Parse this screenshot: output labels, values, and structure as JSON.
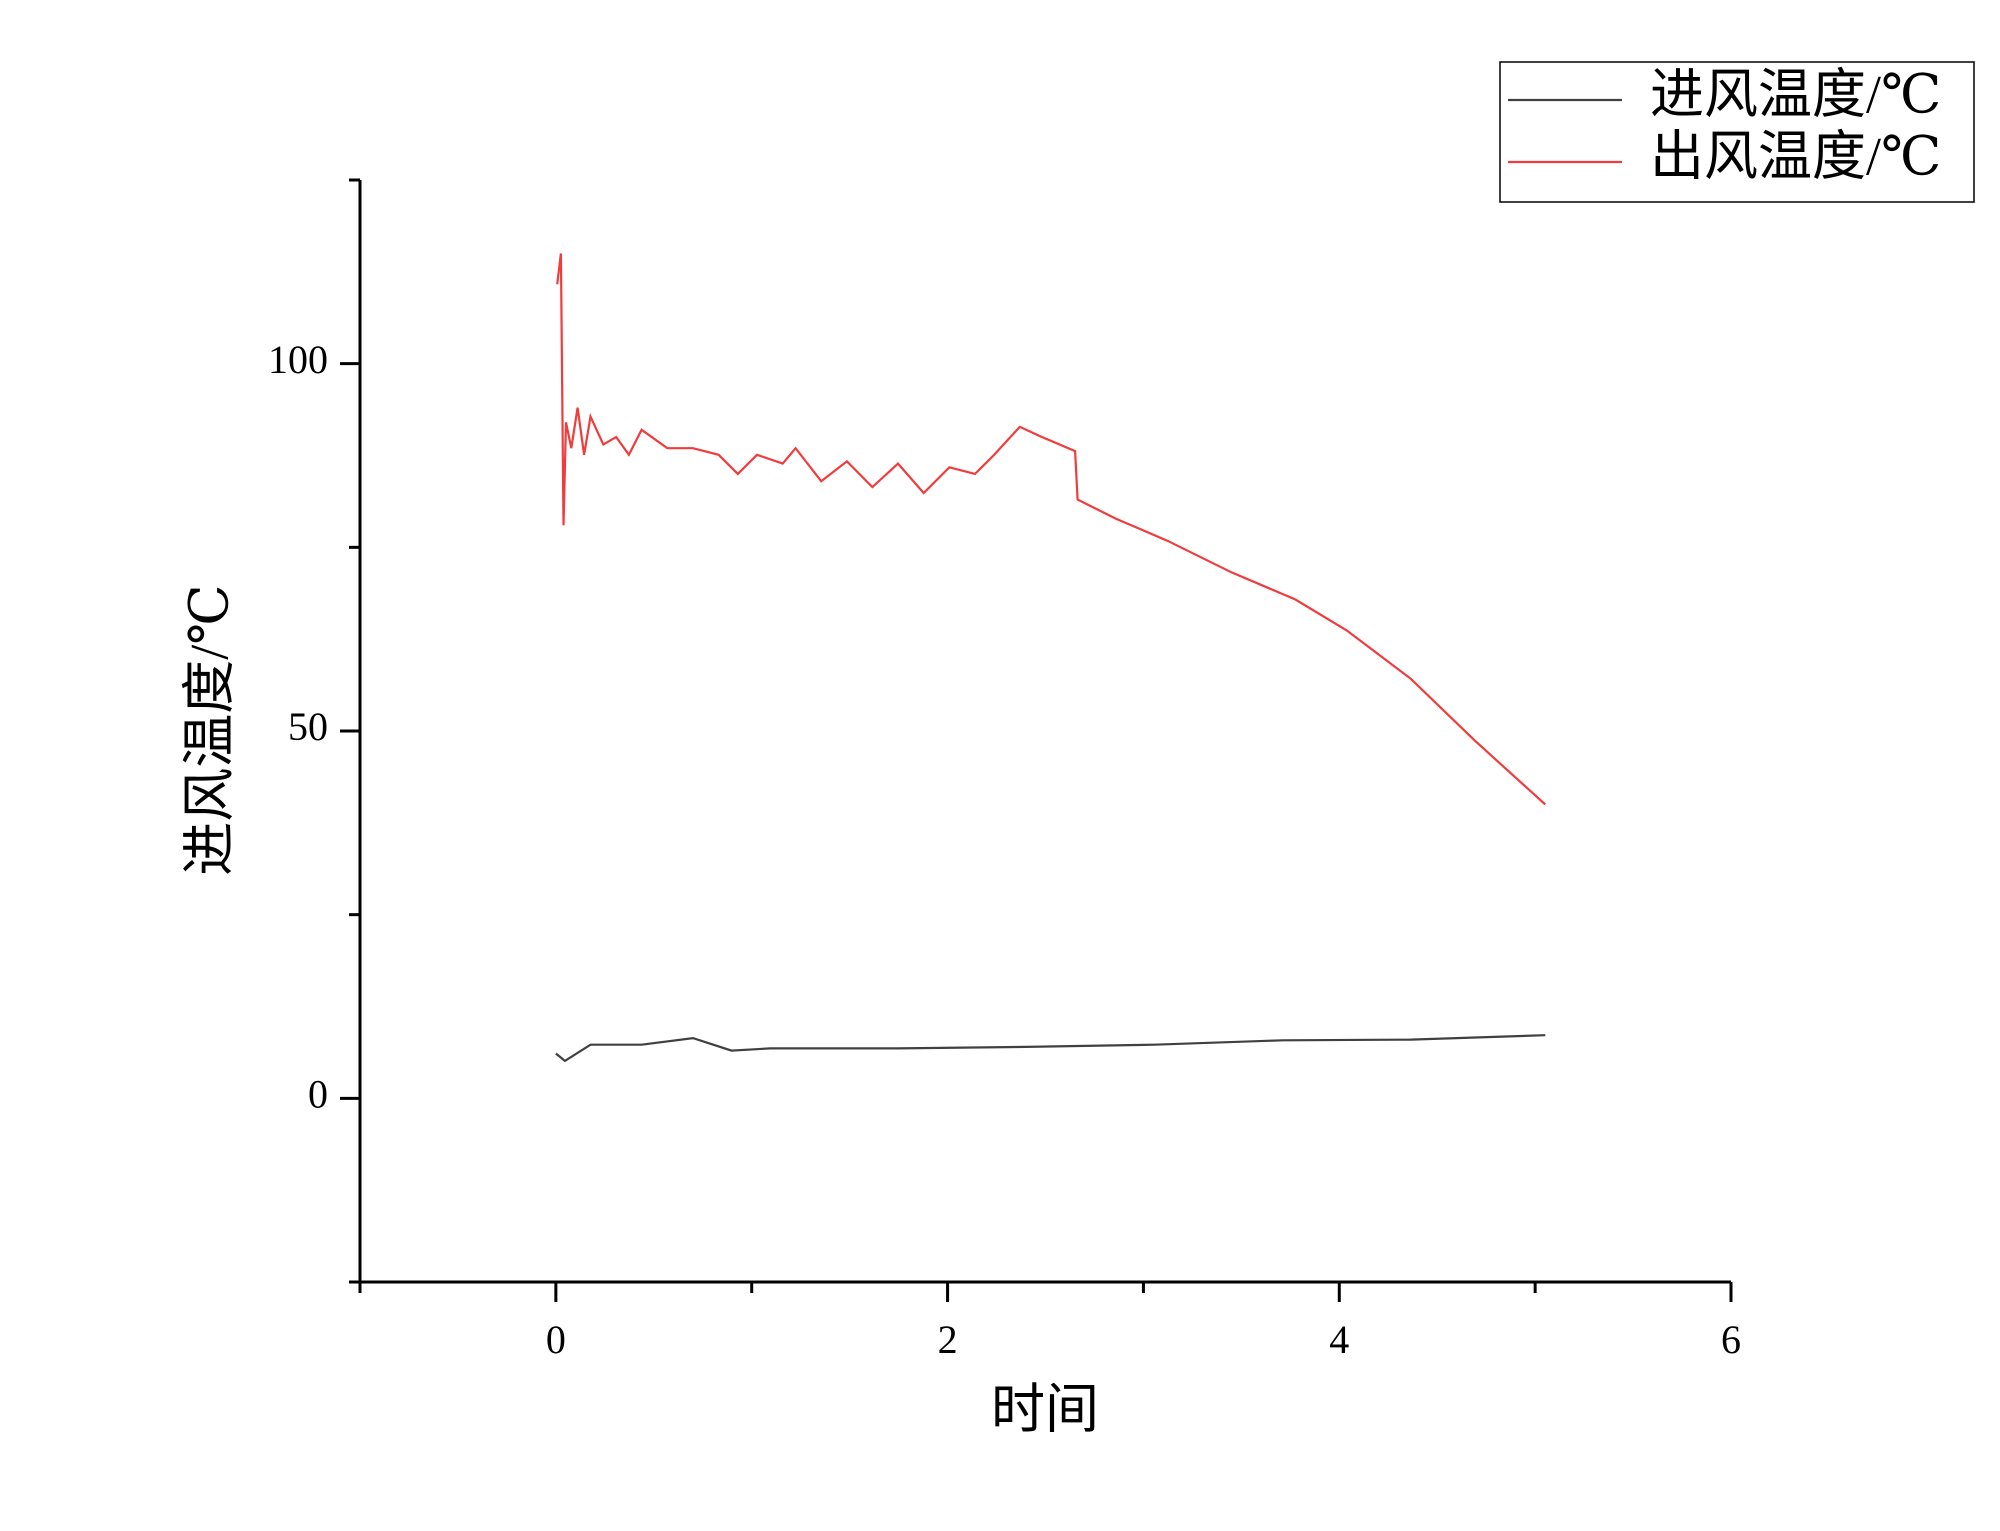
{
  "chart_data": {
    "type": "line",
    "xlabel": "时间",
    "ylabel": "进风温度/℃",
    "xlim": [
      -1,
      6
    ],
    "xticks": [
      0,
      2,
      4,
      6
    ],
    "xminor_ticks": [
      -1,
      1,
      3,
      5
    ],
    "ylim": [
      -25,
      125
    ],
    "yticks": [
      0,
      50,
      100
    ],
    "yminor_ticks": [
      -25,
      25,
      75,
      125
    ],
    "legend": "top-right",
    "series": [
      {
        "name": "进风温度/℃",
        "color": "#404040",
        "x": [
          0,
          0.046,
          0.177,
          0.438,
          0.7,
          0.897,
          1.093,
          1.747,
          2.402,
          3.056,
          3.711,
          4.365,
          5.052
        ],
        "values": [
          6.1,
          5.1,
          7.3,
          7.3,
          8.2,
          6.5,
          6.8,
          6.8,
          7.0,
          7.3,
          7.9,
          8.0,
          8.6
        ]
      },
      {
        "name": "出风温度/℃",
        "color": "#f03c3c",
        "x": [
          0.007,
          0.026,
          0.039,
          0.052,
          0.079,
          0.111,
          0.144,
          0.177,
          0.242,
          0.308,
          0.373,
          0.438,
          0.569,
          0.7,
          0.831,
          0.929,
          1.027,
          1.158,
          1.224,
          1.355,
          1.486,
          1.616,
          1.747,
          1.878,
          2.009,
          2.14,
          2.238,
          2.369,
          2.467,
          2.651,
          2.664,
          2.86,
          3.122,
          3.449,
          3.776,
          4.038,
          4.365,
          4.692,
          5.052
        ],
        "values": [
          110.8,
          115,
          78,
          92,
          88.5,
          94,
          87.6,
          92.8,
          89,
          90,
          87.6,
          91,
          88.5,
          88.5,
          87.6,
          85,
          87.6,
          86.4,
          88.5,
          84,
          86.7,
          83.2,
          86.4,
          82.4,
          85.9,
          85,
          87.6,
          91.4,
          90.2,
          88.1,
          81.5,
          78.9,
          75.9,
          71.6,
          67.9,
          63.7,
          57.1,
          48.7,
          40
        ]
      }
    ]
  }
}
